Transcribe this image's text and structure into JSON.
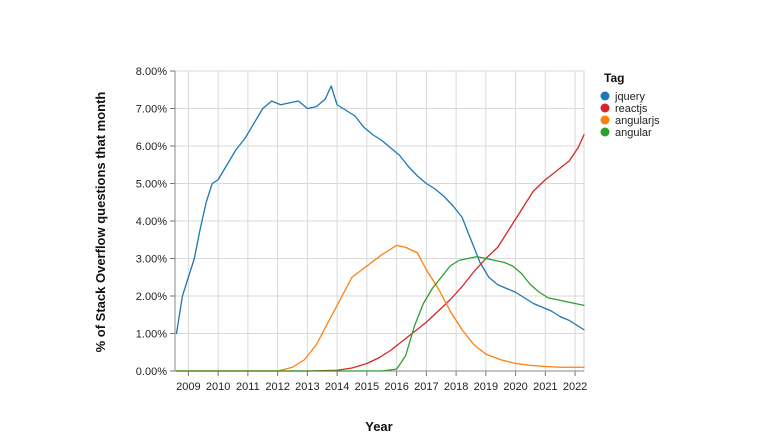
{
  "chart_data": {
    "type": "line",
    "title": "",
    "xlabel": "Year",
    "ylabel": "% of Stack Overflow questions that month",
    "xlim": [
      2008.55,
      2022.3
    ],
    "ylim": [
      0,
      8
    ],
    "x_ticks": [
      2009,
      2010,
      2011,
      2012,
      2013,
      2014,
      2015,
      2016,
      2017,
      2018,
      2019,
      2020,
      2021,
      2022
    ],
    "x_tick_labels": [
      "2009",
      "2010",
      "2011",
      "2012",
      "2013",
      "2014",
      "2015",
      "2016",
      "2017",
      "2018",
      "2019",
      "2020",
      "2021",
      "2022"
    ],
    "y_ticks": [
      0,
      1,
      2,
      3,
      4,
      5,
      6,
      7,
      8
    ],
    "y_tick_labels": [
      "0.00%",
      "1.00%",
      "2.00%",
      "3.00%",
      "4.00%",
      "5.00%",
      "6.00%",
      "7.00%",
      "8.00%"
    ],
    "grid": true,
    "legend": {
      "title": "Tag",
      "placement": "right"
    },
    "series": [
      {
        "name": "jquery",
        "color": "#1f77b4",
        "x": [
          2008.6,
          2008.8,
          2009.0,
          2009.2,
          2009.4,
          2009.6,
          2009.8,
          2010.0,
          2010.3,
          2010.6,
          2010.9,
          2011.2,
          2011.5,
          2011.8,
          2012.1,
          2012.4,
          2012.7,
          2013.0,
          2013.3,
          2013.6,
          2013.8,
          2014.0,
          2014.3,
          2014.6,
          2014.9,
          2015.2,
          2015.5,
          2015.8,
          2016.1,
          2016.4,
          2016.7,
          2017.0,
          2017.3,
          2017.6,
          2017.9,
          2018.2,
          2018.5,
          2018.8,
          2019.1,
          2019.4,
          2019.7,
          2020.0,
          2020.3,
          2020.6,
          2020.9,
          2021.2,
          2021.5,
          2021.8,
          2022.1,
          2022.3
        ],
        "values": [
          1.0,
          2.0,
          2.5,
          3.0,
          3.8,
          4.5,
          5.0,
          5.1,
          5.5,
          5.9,
          6.2,
          6.6,
          7.0,
          7.2,
          7.1,
          7.15,
          7.2,
          7.0,
          7.05,
          7.25,
          7.6,
          7.1,
          6.95,
          6.8,
          6.5,
          6.3,
          6.15,
          5.95,
          5.75,
          5.45,
          5.2,
          5.0,
          4.85,
          4.65,
          4.4,
          4.1,
          3.5,
          2.9,
          2.5,
          2.3,
          2.2,
          2.1,
          1.95,
          1.8,
          1.7,
          1.6,
          1.45,
          1.35,
          1.2,
          1.1
        ]
      },
      {
        "name": "reactjs",
        "color": "#d62728",
        "x": [
          2008.6,
          2013.0,
          2014.0,
          2014.5,
          2015.0,
          2015.4,
          2015.8,
          2016.2,
          2016.6,
          2017.0,
          2017.4,
          2017.8,
          2018.2,
          2018.6,
          2019.0,
          2019.4,
          2019.8,
          2020.2,
          2020.6,
          2021.0,
          2021.4,
          2021.8,
          2022.1,
          2022.3
        ],
        "values": [
          0.0,
          0.0,
          0.02,
          0.08,
          0.2,
          0.35,
          0.55,
          0.8,
          1.05,
          1.3,
          1.6,
          1.9,
          2.25,
          2.65,
          3.0,
          3.3,
          3.8,
          4.3,
          4.8,
          5.1,
          5.35,
          5.6,
          5.95,
          6.3
        ]
      },
      {
        "name": "angularjs",
        "color": "#ff7f0e",
        "x": [
          2008.6,
          2012.0,
          2012.5,
          2012.9,
          2013.3,
          2013.7,
          2014.1,
          2014.5,
          2015.0,
          2015.5,
          2016.0,
          2016.3,
          2016.7,
          2017.0,
          2017.4,
          2017.8,
          2018.2,
          2018.6,
          2019.0,
          2019.5,
          2020.0,
          2020.5,
          2021.0,
          2021.5,
          2022.3
        ],
        "values": [
          0.0,
          0.0,
          0.1,
          0.3,
          0.7,
          1.3,
          1.9,
          2.5,
          2.8,
          3.1,
          3.35,
          3.3,
          3.15,
          2.7,
          2.2,
          1.6,
          1.1,
          0.7,
          0.45,
          0.3,
          0.2,
          0.15,
          0.12,
          0.1,
          0.1
        ]
      },
      {
        "name": "angular",
        "color": "#2ca02c",
        "x": [
          2008.6,
          2015.5,
          2016.0,
          2016.3,
          2016.6,
          2016.9,
          2017.2,
          2017.5,
          2017.8,
          2018.1,
          2018.4,
          2018.7,
          2019.0,
          2019.3,
          2019.6,
          2019.9,
          2020.2,
          2020.5,
          2020.8,
          2021.1,
          2021.4,
          2021.7,
          2022.0,
          2022.3
        ],
        "values": [
          0.0,
          0.0,
          0.05,
          0.4,
          1.2,
          1.8,
          2.2,
          2.5,
          2.8,
          2.95,
          3.0,
          3.05,
          3.0,
          2.95,
          2.9,
          2.8,
          2.6,
          2.3,
          2.1,
          1.95,
          1.9,
          1.85,
          1.8,
          1.75
        ]
      }
    ]
  }
}
